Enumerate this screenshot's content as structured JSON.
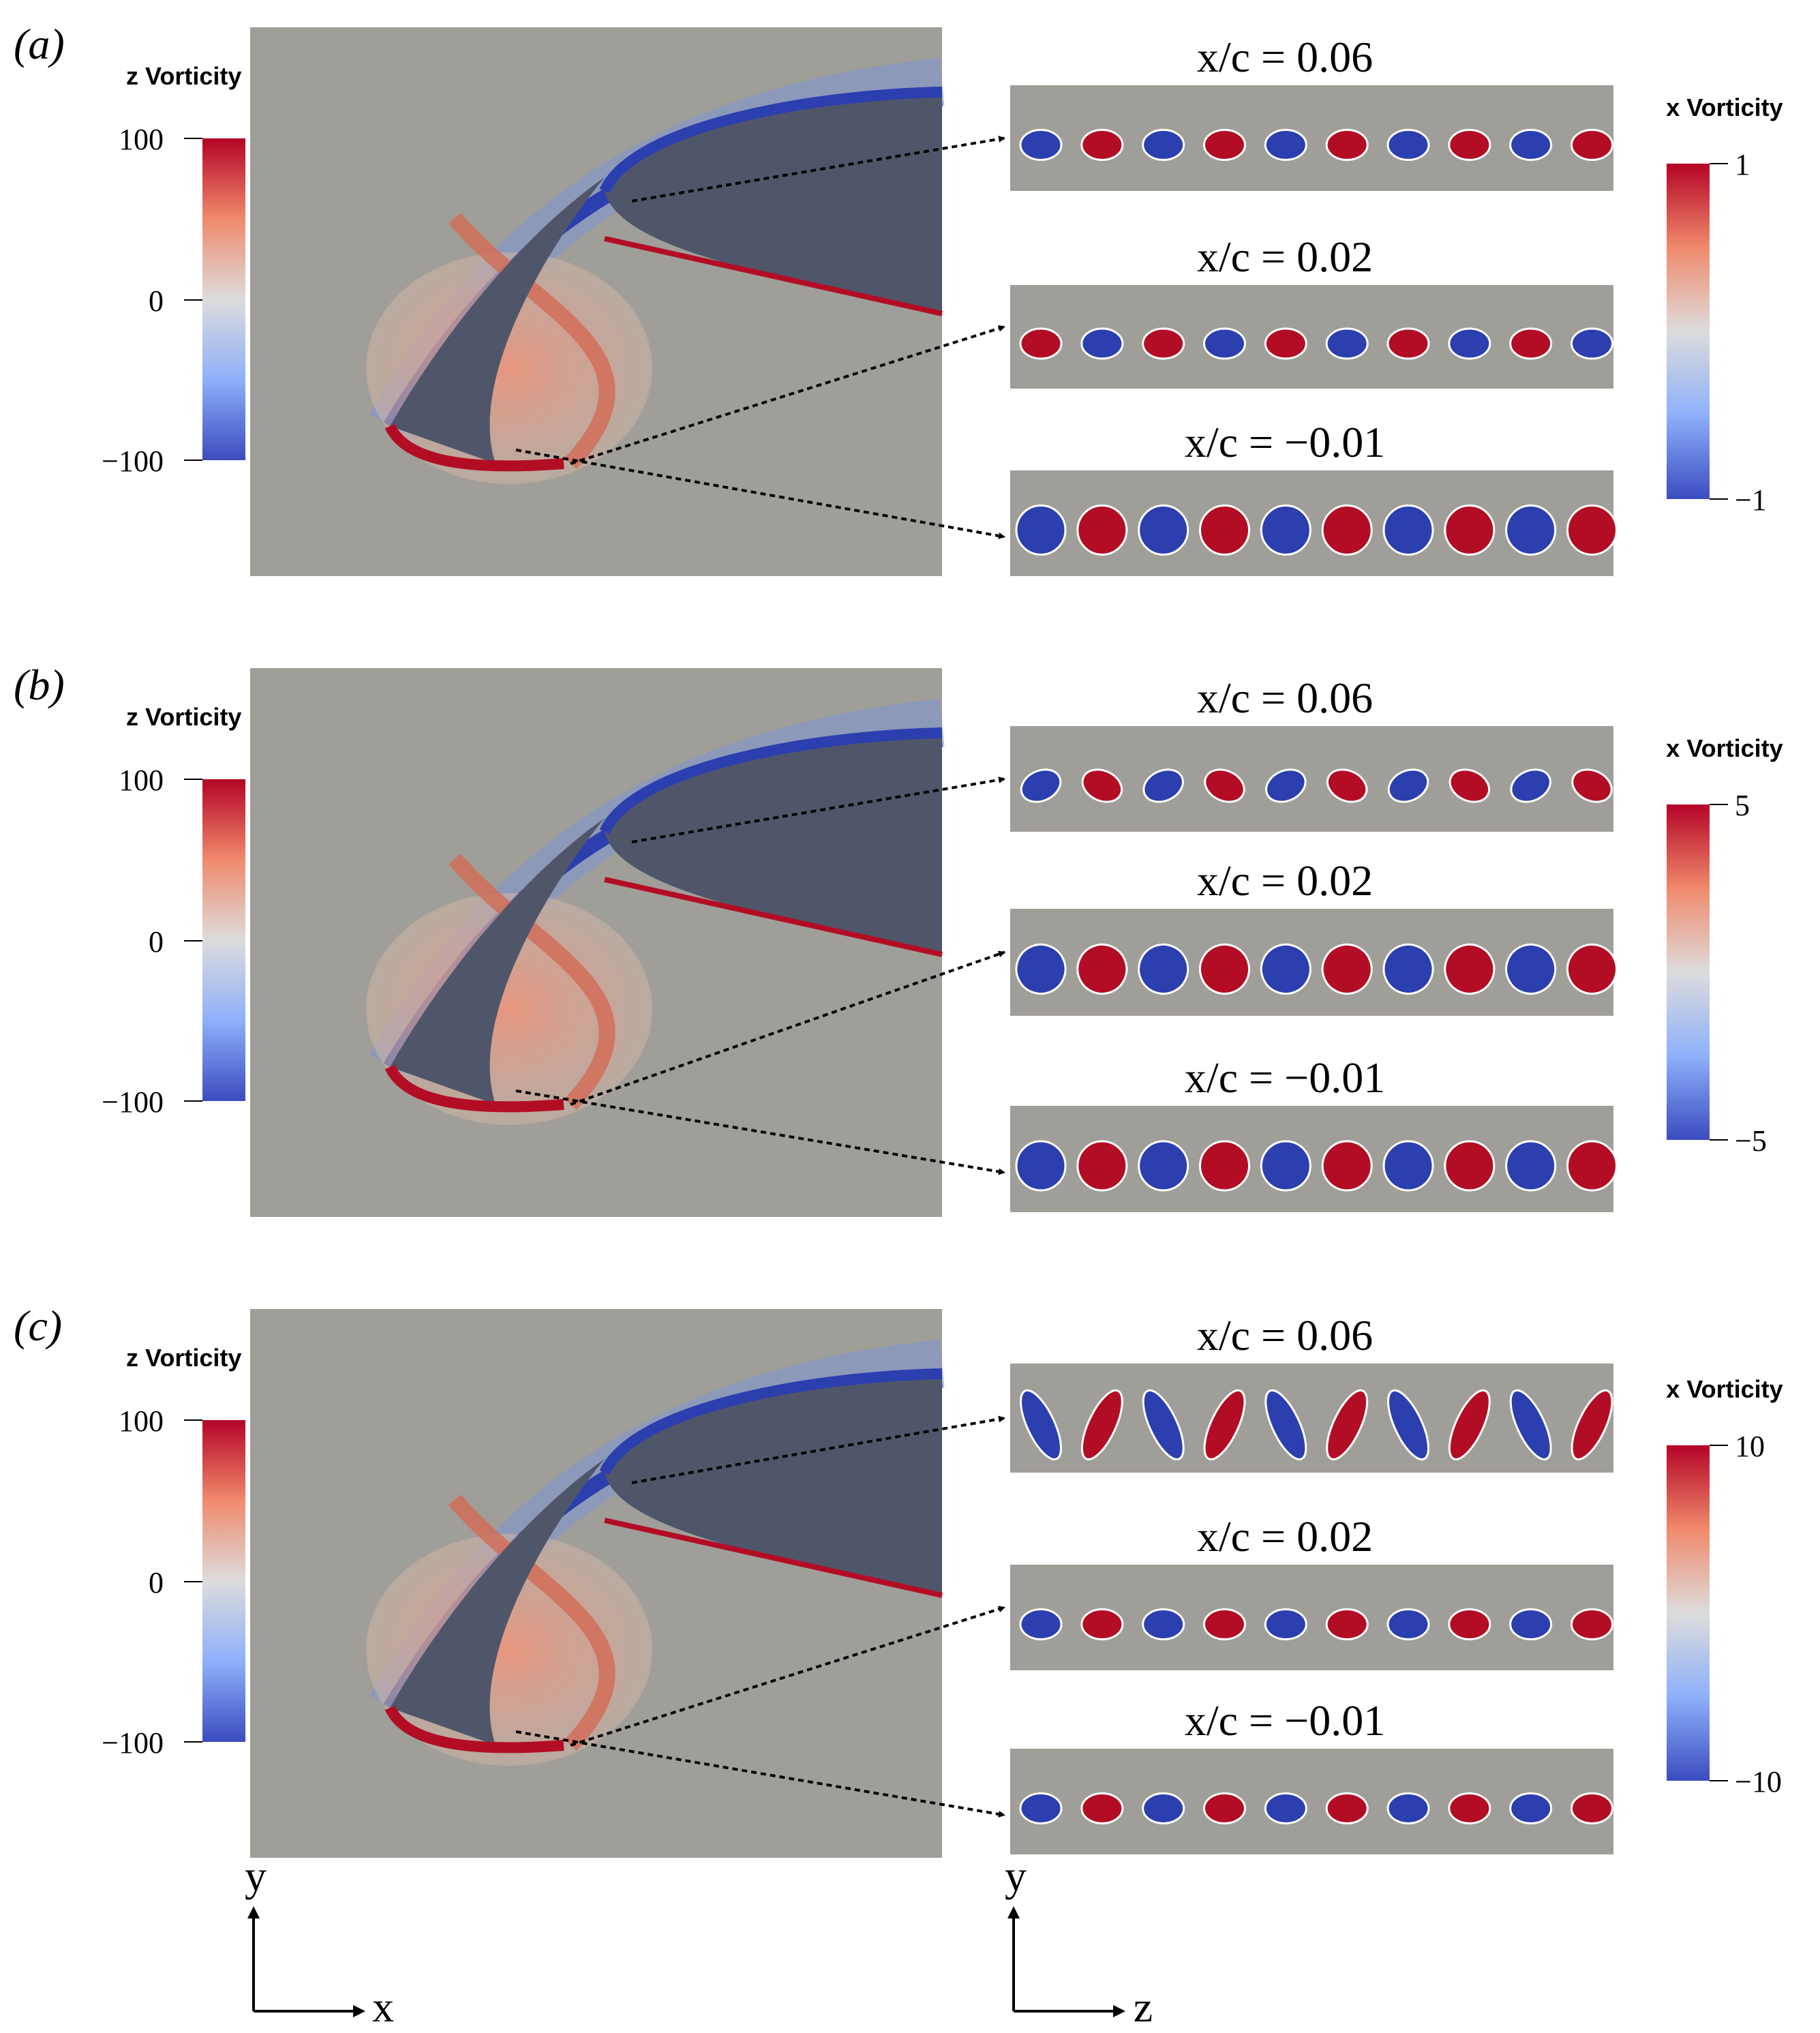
{
  "panels": [
    {
      "label": "(a)",
      "z_colorbar": {
        "title": "z Vorticity",
        "ticks": [
          "100",
          "0",
          "−100"
        ]
      },
      "x_colorbar": {
        "title": "x Vorticity",
        "max": "1",
        "min": "−1"
      },
      "slices": [
        {
          "label": "x/c = 0.06",
          "pattern": "small-row"
        },
        {
          "label": "x/c = 0.02",
          "pattern": "double-row"
        },
        {
          "label": "x/c = −0.01",
          "pattern": "large-row"
        }
      ]
    },
    {
      "label": "(b)",
      "z_colorbar": {
        "title": "z Vorticity",
        "ticks": [
          "100",
          "0",
          "−100"
        ]
      },
      "x_colorbar": {
        "title": "x Vorticity",
        "max": "5",
        "min": "−5"
      },
      "slices": [
        {
          "label": "x/c = 0.06",
          "pattern": "tilted-triple"
        },
        {
          "label": "x/c = 0.02",
          "pattern": "tilted-row"
        },
        {
          "label": "x/c = −0.01",
          "pattern": "large-row"
        }
      ]
    },
    {
      "label": "(c)",
      "z_colorbar": {
        "title": "z Vorticity",
        "ticks": [
          "100",
          "0",
          "−100"
        ]
      },
      "x_colorbar": {
        "title": "x Vorticity",
        "max": "10",
        "min": "−10"
      },
      "slices": [
        {
          "label": "x/c = 0.06",
          "pattern": "streaks"
        },
        {
          "label": "x/c = 0.02",
          "pattern": "scattered"
        },
        {
          "label": "x/c = −0.01",
          "pattern": "irregular-row"
        }
      ]
    }
  ],
  "axes_left": {
    "vertical": "y",
    "horizontal": "x"
  },
  "axes_right": {
    "vertical": "y",
    "horizontal": "z"
  },
  "colors": {
    "background_field": "#a09e98",
    "body": "#50566a",
    "positive": "#b30d26",
    "negative": "#2c3fae",
    "contour": "#ffffff"
  }
}
